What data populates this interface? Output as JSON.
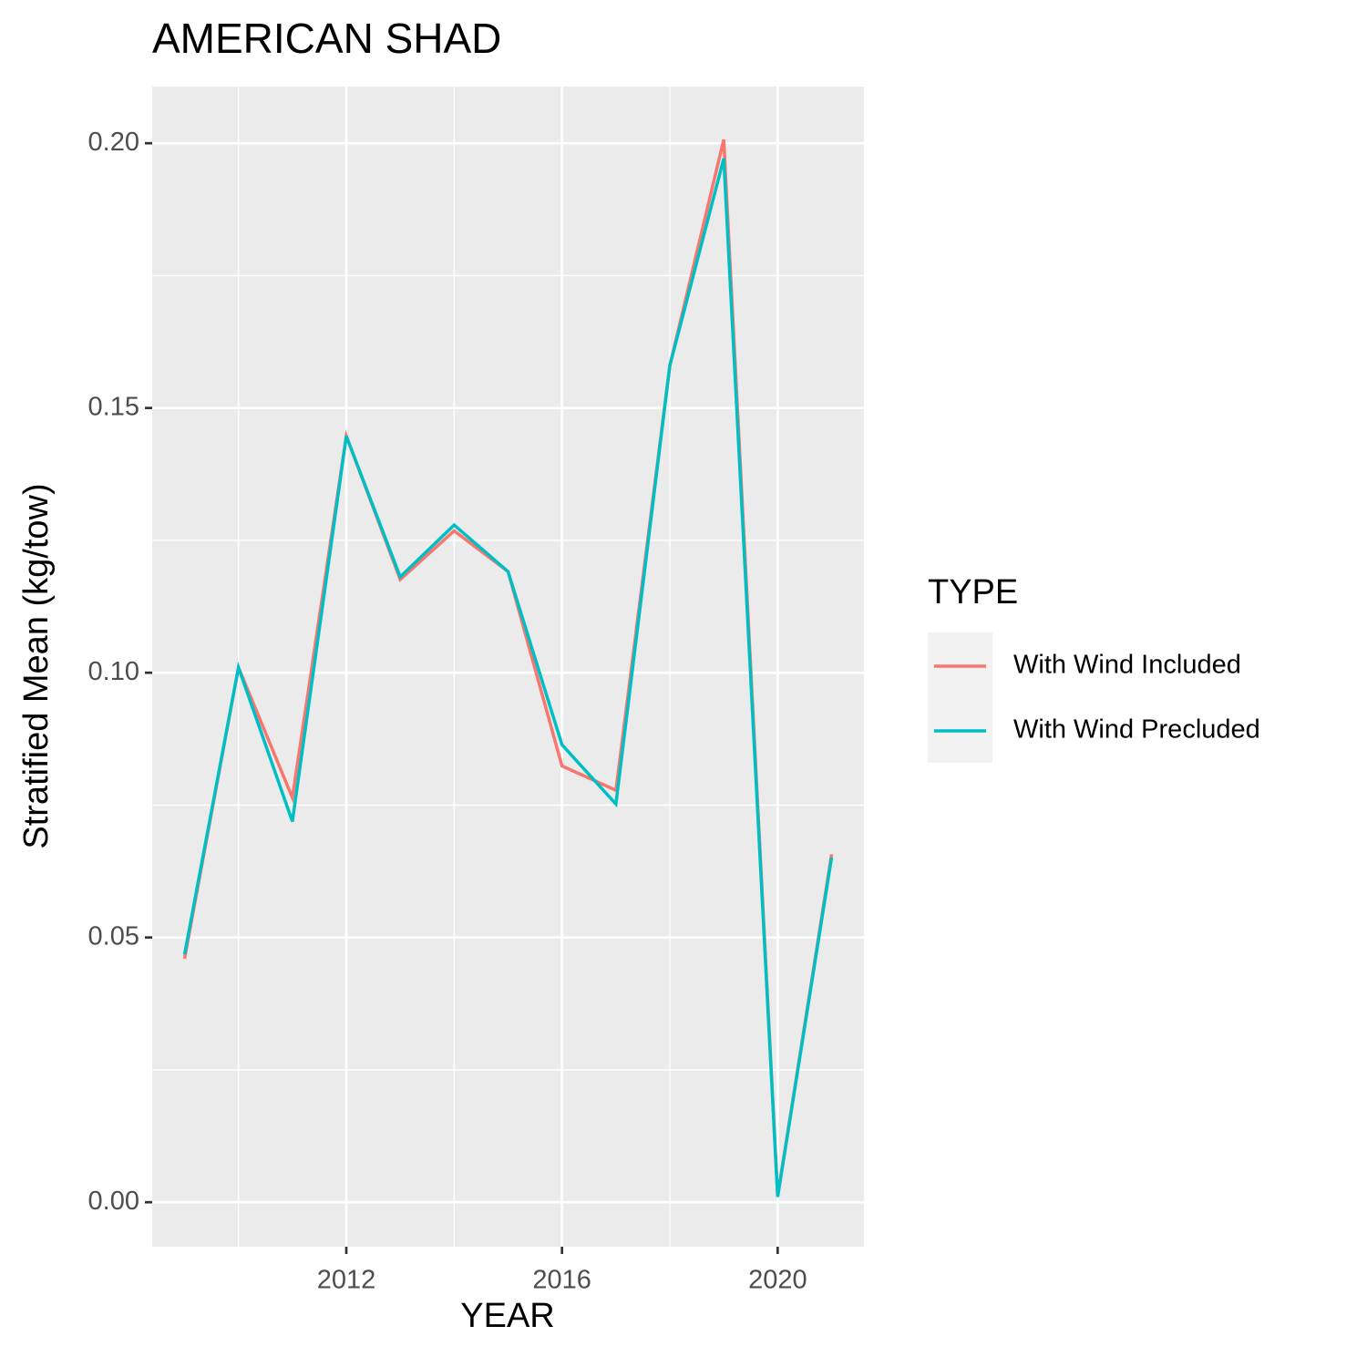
{
  "chart_data": {
    "type": "line",
    "title": "AMERICAN SHAD",
    "x_label": "YEAR",
    "y_label": "Stratified Mean (kg/tow)",
    "x": [
      2009,
      2010,
      2011,
      2012,
      2013,
      2014,
      2015,
      2016,
      2017,
      2018,
      2019,
      2020,
      2021
    ],
    "series": [
      {
        "name": "With Wind Included",
        "color": "#f8766d",
        "values": [
          0.046,
          0.101,
          0.0764,
          0.1447,
          0.1176,
          0.1268,
          0.1191,
          0.0824,
          0.0778,
          0.158,
          0.2007,
          0.0012,
          0.0657
        ]
      },
      {
        "name": "With Wind Precluded",
        "color": "#00bfc4",
        "values": [
          0.0468,
          0.101,
          0.0719,
          0.1447,
          0.1181,
          0.1279,
          0.1191,
          0.0864,
          0.0752,
          0.158,
          0.1971,
          0.001,
          0.0651
        ]
      }
    ],
    "xlim": [
      2008.4,
      2021.6
    ],
    "ylim": [
      -0.0084,
      0.2107
    ],
    "xticks": [
      2012,
      2016,
      2020
    ],
    "x_minor_grid": [
      2010,
      2014,
      2018
    ],
    "yticks": [
      {
        "value": 0,
        "label": "0.00"
      },
      {
        "value": 0.05,
        "label": "0.05"
      },
      {
        "value": 0.1,
        "label": "0.10"
      },
      {
        "value": 0.15,
        "label": "0.15"
      },
      {
        "value": 0.2,
        "label": "0.20"
      }
    ],
    "y_minor_grid": [
      0.025,
      0.075,
      0.125,
      0.175
    ],
    "grid": true,
    "legend_title": "TYPE",
    "legend_position": "right"
  }
}
